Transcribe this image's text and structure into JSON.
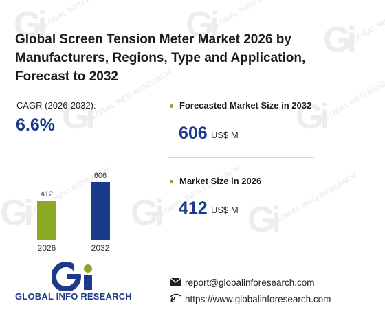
{
  "title": "Global Screen Tension Meter Market 2026 by Manufacturers, Regions, Type and Application, Forecast to 2032",
  "cagr": {
    "label": "CAGR (2026-2032):",
    "value": "6.6%"
  },
  "kpis": [
    {
      "label": "Forecasted Market Size in 2032",
      "value": "606",
      "unit": "US$ M"
    },
    {
      "label": "Market Size in 2026",
      "value": "412",
      "unit": "US$ M"
    }
  ],
  "chart_data": {
    "type": "bar",
    "categories": [
      "2026",
      "2032"
    ],
    "values": [
      412,
      606
    ],
    "data_labels": [
      "412",
      "606"
    ],
    "colors": [
      "#8aaa26",
      "#1a3a8c"
    ],
    "title": "",
    "xlabel": "",
    "ylabel": ""
  },
  "logo": {
    "text": "GLOBAL INFO RESEARCH",
    "colors": {
      "blue": "#1d3a8a",
      "green": "#8aaa26"
    }
  },
  "contact": {
    "email": "report@globalinforesearch.com",
    "website": "https://www.globalinforesearch.com",
    "email_icon": "envelope-icon",
    "website_icon": "internet-explorer-icon"
  },
  "watermark": {
    "text": "GLOBAL INFO RESEARCH"
  }
}
